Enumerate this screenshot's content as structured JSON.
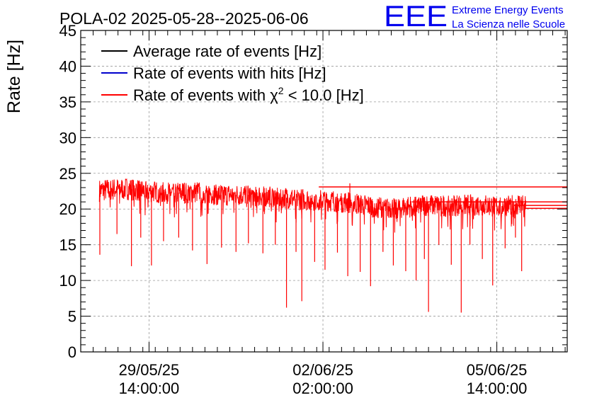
{
  "title": "POLA-02 2025-05-28--2025-06-06",
  "logo": {
    "mark": "EEE",
    "line1": "Extreme Energy Events",
    "line2": "La Scienza nelle Scuole",
    "color": "#0000ee"
  },
  "chart_data": {
    "type": "line",
    "title": "POLA-02 2025-05-28--2025-06-06",
    "ylabel": "Rate [Hz]",
    "xlabel": "",
    "ylim": [
      0,
      45
    ],
    "yticks": [
      0,
      5,
      10,
      15,
      20,
      25,
      30,
      35,
      40,
      45
    ],
    "xlim": [
      "2025-05-28 05:00",
      "2025-06-07 00:00"
    ],
    "xticks": [
      {
        "t": "2025-05-29 14:00",
        "line1": "29/05/25",
        "line2": "14:00:00"
      },
      {
        "t": "2025-06-02 02:00",
        "line1": "02/06/25",
        "line2": "02:00:00"
      },
      {
        "t": "2025-06-05 14:00",
        "line1": "05/06/25",
        "line2": "14:00:00"
      }
    ],
    "grid": true,
    "legend_position": "top-left",
    "series": [
      {
        "name": "Average rate of events [Hz]",
        "color": "#000000",
        "values": []
      },
      {
        "name": "Rate of events with hits [Hz]",
        "color": "#0000cc",
        "values": []
      },
      {
        "name": "Rate of events with χ² < 10.0 [Hz]",
        "color": "#ff0000",
        "label_main": "Rate of events with ",
        "label_chi": "χ",
        "label_sup": "2",
        "label_tail": " < 10.0 [Hz]",
        "data_start": "2025-05-28 14:00",
        "data_end": "2025-06-06 04:00",
        "points": [
          [
            "2025-05-28 14:00",
            22.6
          ],
          [
            "2025-05-29 02:00",
            22.9
          ],
          [
            "2025-05-29 14:00",
            22.5
          ],
          [
            "2025-05-30 02:00",
            22.3
          ],
          [
            "2025-05-30 14:00",
            22.4
          ],
          [
            "2025-05-31 02:00",
            22.0
          ],
          [
            "2025-05-31 14:00",
            22.0
          ],
          [
            "2025-06-01 02:00",
            21.8
          ],
          [
            "2025-06-01 14:00",
            21.4
          ],
          [
            "2025-06-02 02:00",
            21.3
          ],
          [
            "2025-06-02 14:00",
            21.0
          ],
          [
            "2025-06-03 02:00",
            20.4
          ],
          [
            "2025-06-03 14:00",
            20.2
          ],
          [
            "2025-06-04 02:00",
            20.6
          ],
          [
            "2025-06-04 14:00",
            20.5
          ],
          [
            "2025-06-05 02:00",
            20.7
          ],
          [
            "2025-06-05 14:00",
            20.4
          ],
          [
            "2025-06-06 02:00",
            20.8
          ]
        ],
        "dips": [
          [
            "2025-05-28 14:14",
            13.6
          ],
          [
            "2025-05-28 22:30",
            16.5
          ],
          [
            "2025-05-29 05:30",
            12.0
          ],
          [
            "2025-05-29 10:00",
            16.0
          ],
          [
            "2025-05-29 15:10",
            12.1
          ],
          [
            "2025-05-29 21:00",
            15.5
          ],
          [
            "2025-05-30 04:20",
            16.0
          ],
          [
            "2025-05-30 11:00",
            14.2
          ],
          [
            "2025-05-30 18:00",
            12.3
          ],
          [
            "2025-05-31 01:00",
            14.6
          ],
          [
            "2025-05-31 08:00",
            14.0
          ],
          [
            "2025-05-31 14:00",
            15.2
          ],
          [
            "2025-05-31 21:00",
            13.8
          ],
          [
            "2025-06-01 03:00",
            15.0
          ],
          [
            "2025-06-01 08:24",
            6.2
          ],
          [
            "2025-06-01 13:00",
            14.0
          ],
          [
            "2025-06-01 15:48",
            7.1
          ],
          [
            "2025-06-01 22:00",
            12.6
          ],
          [
            "2025-06-02 03:00",
            11.5
          ],
          [
            "2025-06-02 09:00",
            13.9
          ],
          [
            "2025-06-02 14:00",
            10.6
          ],
          [
            "2025-06-02 20:00",
            11.2
          ],
          [
            "2025-06-03 01:00",
            9.2
          ],
          [
            "2025-06-03 07:00",
            14.0
          ],
          [
            "2025-06-03 12:00",
            12.1
          ],
          [
            "2025-06-03 18:00",
            11.3
          ],
          [
            "2025-06-03 23:00",
            10.0
          ],
          [
            "2025-06-04 03:00",
            13.0
          ],
          [
            "2025-06-04 05:00",
            5.6
          ],
          [
            "2025-06-04 10:00",
            15.0
          ],
          [
            "2025-06-04 16:00",
            12.2
          ],
          [
            "2025-06-04 20:48",
            5.5
          ],
          [
            "2025-06-05 01:00",
            15.0
          ],
          [
            "2025-06-05 07:00",
            13.0
          ],
          [
            "2025-06-05 12:00",
            9.3
          ],
          [
            "2025-06-05 18:00",
            14.5
          ],
          [
            "2025-06-05 23:00",
            16.0
          ],
          [
            "2025-06-06 02:00",
            11.3
          ]
        ],
        "spikes": [
          [
            "2025-06-02 15:00",
            23.6
          ]
        ],
        "flat_lines": [
          {
            "from": "2025-06-02 00:00",
            "to": "2025-06-07 00:00",
            "y": 23.1
          },
          {
            "from": "2025-06-03 21:00",
            "to": "2025-06-07 00:00",
            "y": 21.0
          },
          {
            "from": "2025-06-05 22:00",
            "to": "2025-06-07 00:00",
            "y": 20.5
          },
          {
            "from": "2025-06-06 04:00",
            "to": "2025-06-07 00:00",
            "y": 20.1
          }
        ]
      }
    ]
  }
}
